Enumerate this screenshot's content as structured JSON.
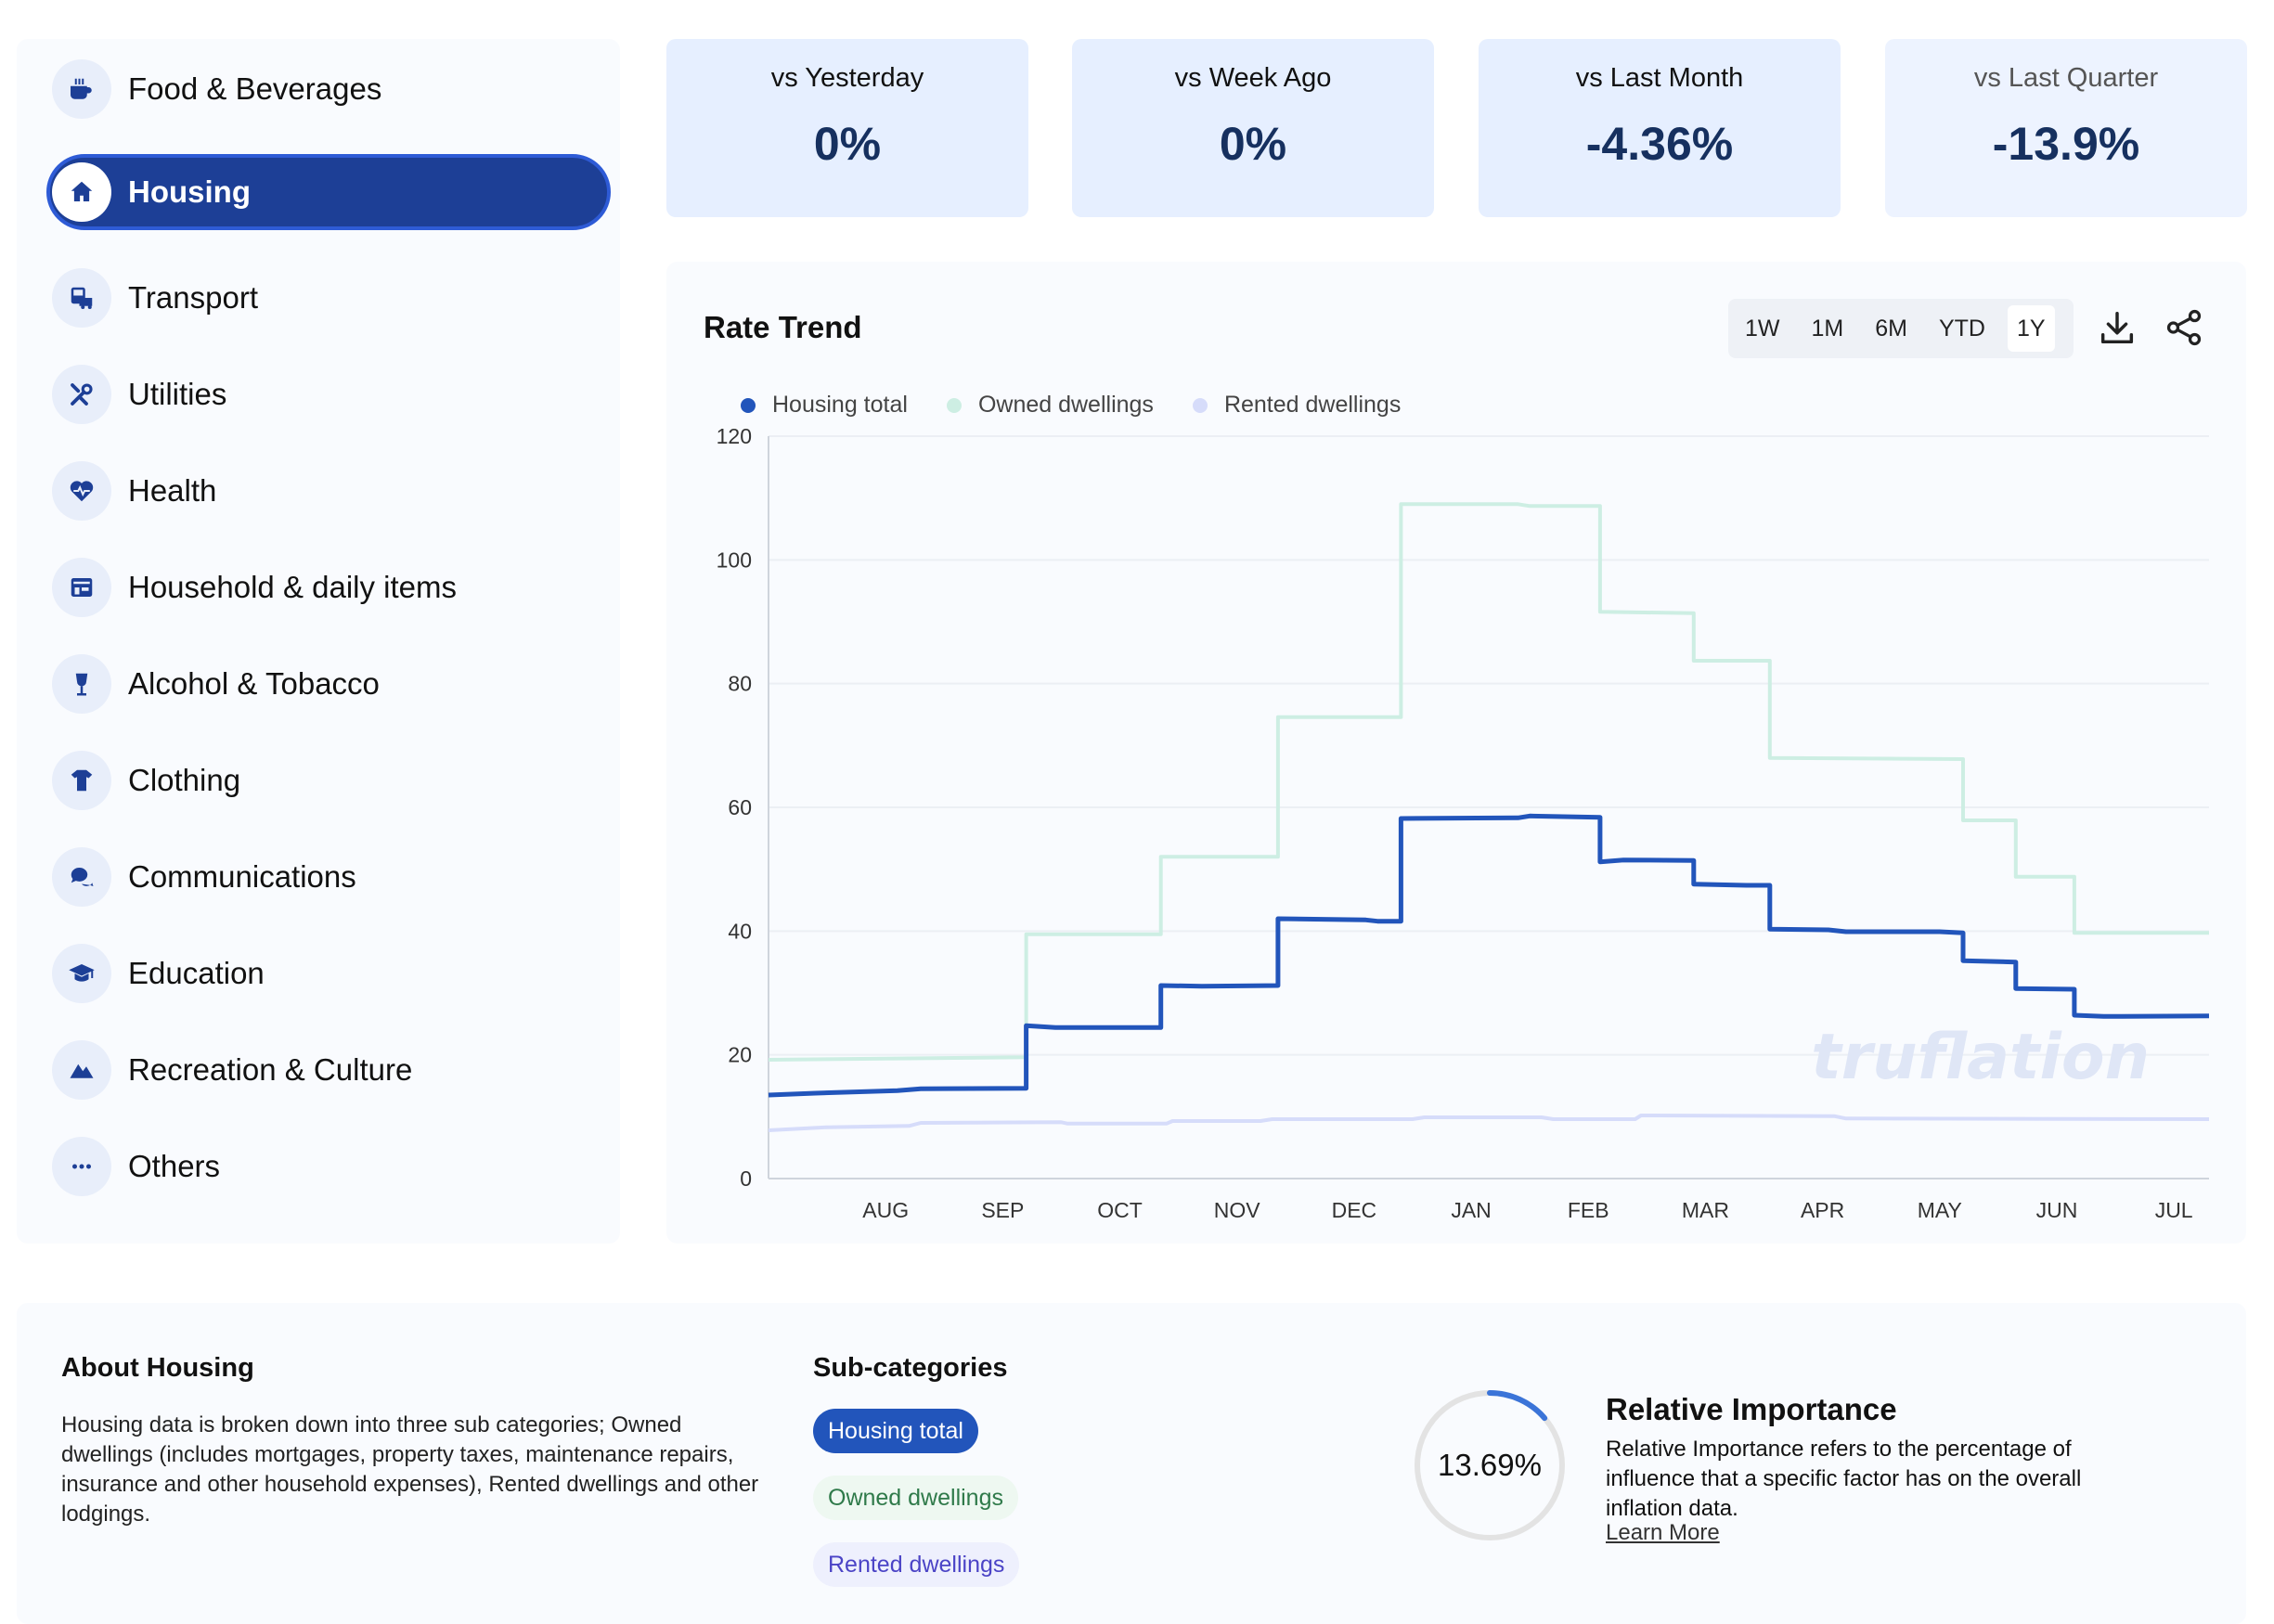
{
  "sidebar": {
    "items": [
      {
        "label": "Food & Beverages",
        "icon": "food-beverages-icon"
      },
      {
        "label": "Housing",
        "icon": "house-icon",
        "active": true
      },
      {
        "label": "Transport",
        "icon": "transport-icon"
      },
      {
        "label": "Utilities",
        "icon": "tools-icon"
      },
      {
        "label": "Health",
        "icon": "heart-pulse-icon"
      },
      {
        "label": "Household & daily items",
        "icon": "storefront-icon"
      },
      {
        "label": "Alcohol & Tobacco",
        "icon": "wine-glass-icon"
      },
      {
        "label": "Clothing",
        "icon": "tshirt-icon"
      },
      {
        "label": "Communications",
        "icon": "chat-bubbles-icon"
      },
      {
        "label": "Education",
        "icon": "graduation-cap-icon"
      },
      {
        "label": "Recreation & Culture",
        "icon": "mountains-icon"
      },
      {
        "label": "Others",
        "icon": "ellipsis-icon"
      }
    ]
  },
  "stats": [
    {
      "label": "vs Yesterday",
      "value": "0%"
    },
    {
      "label": "vs Week Ago",
      "value": "0%"
    },
    {
      "label": "vs Last Month",
      "value": "-4.36%"
    },
    {
      "label": "vs Last Quarter",
      "value": "-13.9%"
    }
  ],
  "chart_panel": {
    "title": "Rate Trend",
    "ranges": [
      "1W",
      "1M",
      "6M",
      "YTD",
      "1Y"
    ],
    "active_range": "1Y",
    "tools": [
      "download-icon",
      "share-icon"
    ],
    "watermark": "truflation"
  },
  "chart_data": {
    "type": "line",
    "step": true,
    "ylim": [
      0,
      120
    ],
    "yticks": [
      0,
      20,
      40,
      60,
      80,
      100,
      120
    ],
    "xlim": [
      0,
      12.3
    ],
    "categories": [
      "AUG",
      "SEP",
      "OCT",
      "NOV",
      "DEC",
      "JAN",
      "FEB",
      "MAR",
      "APR",
      "MAY",
      "JUN",
      "JUL"
    ],
    "grid": true,
    "legend_position": "top-left",
    "series": [
      {
        "name": "Housing total",
        "color": "#2255bb",
        "width": 5,
        "points": [
          [
            0,
            13.5
          ],
          [
            0.4,
            13.8
          ],
          [
            1.1,
            14.2
          ],
          [
            1.3,
            14.5
          ],
          [
            2.2,
            14.6
          ],
          [
            2.2,
            24.7
          ],
          [
            2.45,
            24.4
          ],
          [
            3.35,
            24.4
          ],
          [
            3.35,
            31.2
          ],
          [
            3.7,
            31.1
          ],
          [
            4.35,
            31.2
          ],
          [
            4.35,
            42.0
          ],
          [
            5.1,
            41.8
          ],
          [
            5.2,
            41.6
          ],
          [
            5.4,
            41.6
          ],
          [
            5.4,
            58.2
          ],
          [
            6.4,
            58.3
          ],
          [
            6.5,
            58.6
          ],
          [
            7.1,
            58.4
          ],
          [
            7.1,
            51.2
          ],
          [
            7.3,
            51.5
          ],
          [
            7.9,
            51.4
          ],
          [
            7.9,
            47.6
          ],
          [
            8.35,
            47.4
          ],
          [
            8.55,
            47.4
          ],
          [
            8.55,
            40.3
          ],
          [
            9.05,
            40.2
          ],
          [
            9.2,
            39.9
          ],
          [
            10.0,
            39.9
          ],
          [
            10.2,
            39.7
          ],
          [
            10.2,
            35.2
          ],
          [
            10.65,
            35.0
          ],
          [
            10.65,
            30.7
          ],
          [
            11.15,
            30.6
          ],
          [
            11.15,
            26.4
          ],
          [
            11.4,
            26.2
          ],
          [
            12.3,
            26.3
          ]
        ]
      },
      {
        "name": "Owned dwellings",
        "color": "#cdeee3",
        "width": 4,
        "points": [
          [
            0,
            19.2
          ],
          [
            2.2,
            19.6
          ],
          [
            2.2,
            39.5
          ],
          [
            3.35,
            39.5
          ],
          [
            3.35,
            52.0
          ],
          [
            4.35,
            52.0
          ],
          [
            4.35,
            74.6
          ],
          [
            5.4,
            74.6
          ],
          [
            5.4,
            109.0
          ],
          [
            6.4,
            109.0
          ],
          [
            6.5,
            108.7
          ],
          [
            7.1,
            108.7
          ],
          [
            7.1,
            91.6
          ],
          [
            7.9,
            91.4
          ],
          [
            7.9,
            83.7
          ],
          [
            8.55,
            83.7
          ],
          [
            8.55,
            68.0
          ],
          [
            10.2,
            67.8
          ],
          [
            10.2,
            57.9
          ],
          [
            10.65,
            57.9
          ],
          [
            10.65,
            48.8
          ],
          [
            11.15,
            48.8
          ],
          [
            11.15,
            39.7
          ],
          [
            12.3,
            39.7
          ]
        ]
      },
      {
        "name": "Rented dwellings",
        "color": "#d6dcfa",
        "width": 4,
        "points": [
          [
            0,
            7.8
          ],
          [
            0.5,
            8.3
          ],
          [
            1.2,
            8.5
          ],
          [
            1.3,
            9.0
          ],
          [
            2.5,
            9.1
          ],
          [
            2.55,
            8.9
          ],
          [
            3.4,
            8.9
          ],
          [
            3.45,
            9.3
          ],
          [
            4.2,
            9.3
          ],
          [
            4.3,
            9.6
          ],
          [
            5.5,
            9.6
          ],
          [
            5.6,
            9.9
          ],
          [
            6.6,
            9.9
          ],
          [
            6.7,
            9.6
          ],
          [
            7.4,
            9.6
          ],
          [
            7.45,
            10.2
          ],
          [
            9.1,
            10.1
          ],
          [
            9.2,
            9.7
          ],
          [
            12.3,
            9.6
          ]
        ]
      }
    ]
  },
  "about": {
    "title": "About Housing",
    "text": "Housing data is broken down into three sub categories; Owned dwellings (includes mortgages, property taxes, maintenance repairs, insurance and other household expenses), Rented dwellings and other lodgings."
  },
  "subcategories": {
    "title": "Sub-categories",
    "items": [
      {
        "label": "Housing total",
        "bg": "#2255bb",
        "fg": "#ffffff"
      },
      {
        "label": "Owned dwellings",
        "bg": "#eef8f1",
        "fg": "#2f7a4a"
      },
      {
        "label": "Rented dwellings",
        "bg": "#eef0fd",
        "fg": "#4b44c6"
      }
    ]
  },
  "relative_importance": {
    "value_text": "13.69%",
    "value": 13.69,
    "title": "Relative Importance",
    "text": "Relative Importance refers to the percentage of influence that a specific factor has on the overall inflation data.",
    "link": "Learn More"
  },
  "colors": {
    "accent": "#1d3f96",
    "accent_border": "#2e5bd6",
    "card_bg": "#e6efff",
    "value_text": "#16305f",
    "ring_track": "#e3e3e3",
    "ring_fill": "#3b74d8"
  }
}
